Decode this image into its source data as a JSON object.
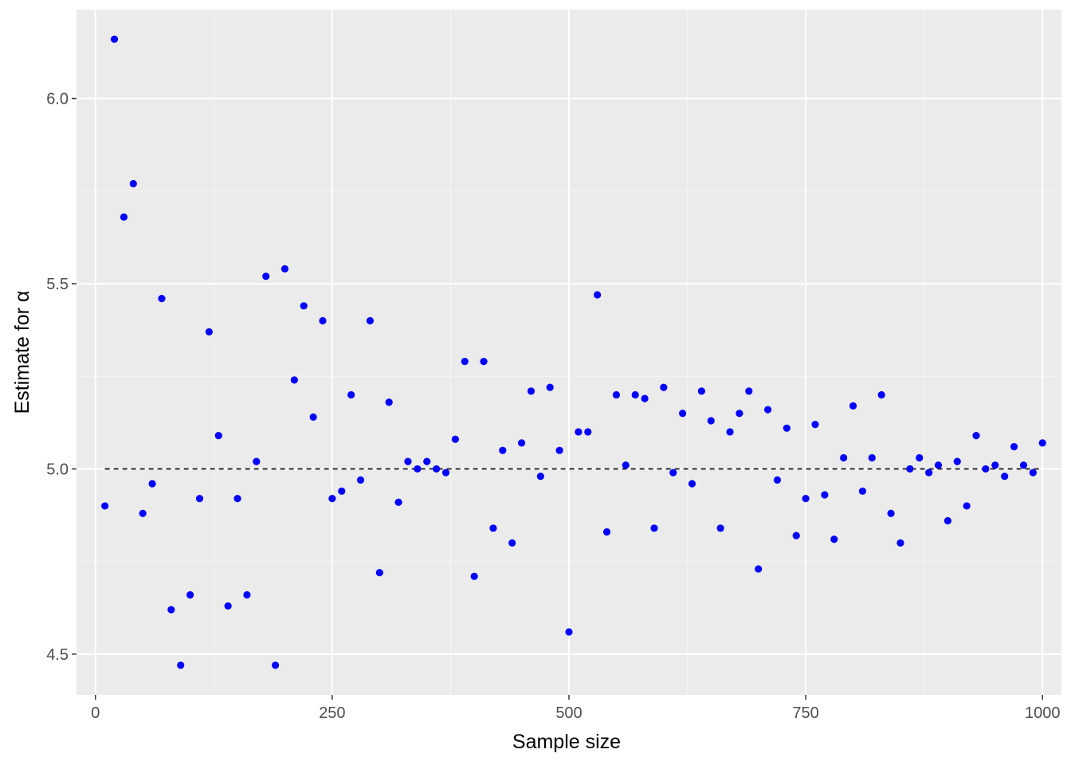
{
  "colors": {
    "panel_background": "#ebebeb",
    "grid_major": "#ffffff",
    "grid_minor": "#f5f5f5",
    "point": "#0000ff",
    "reference_line": "#000000"
  },
  "chart_data": {
    "type": "scatter",
    "xlabel": "Sample size",
    "ylabel": "Estimate for α",
    "xlim": [
      -20,
      1020
    ],
    "ylim": [
      4.39,
      6.24
    ],
    "x_ticks": [
      0,
      250,
      500,
      750,
      1000
    ],
    "x_tick_labels": [
      "0",
      "250",
      "500",
      "750",
      "1000"
    ],
    "y_ticks": [
      4.5,
      5.0,
      5.5,
      6.0
    ],
    "y_tick_labels": [
      "4.5",
      "5.0",
      "5.5",
      "6.0"
    ],
    "grid": true,
    "reference_line": {
      "y": 5.0,
      "x_from": 10,
      "x_to": 1000,
      "style": "dashed"
    },
    "x": [
      10,
      20,
      30,
      40,
      50,
      60,
      70,
      80,
      90,
      100,
      110,
      120,
      130,
      140,
      150,
      160,
      170,
      180,
      190,
      200,
      210,
      220,
      230,
      240,
      250,
      260,
      270,
      280,
      290,
      300,
      310,
      320,
      330,
      340,
      350,
      360,
      370,
      380,
      390,
      400,
      410,
      420,
      430,
      440,
      450,
      460,
      470,
      480,
      490,
      500,
      510,
      520,
      530,
      540,
      550,
      560,
      570,
      580,
      590,
      600,
      610,
      620,
      630,
      640,
      650,
      660,
      670,
      680,
      690,
      700,
      710,
      720,
      730,
      740,
      750,
      760,
      770,
      780,
      790,
      800,
      810,
      820,
      830,
      840,
      850,
      860,
      870,
      880,
      890,
      900,
      910,
      920,
      930,
      940,
      950,
      960,
      970,
      980,
      990,
      1000
    ],
    "y": [
      4.9,
      6.16,
      5.68,
      5.77,
      4.88,
      4.96,
      5.46,
      4.62,
      4.47,
      4.66,
      4.92,
      5.37,
      5.09,
      4.63,
      4.92,
      4.66,
      5.02,
      5.52,
      4.47,
      5.54,
      5.24,
      5.44,
      5.14,
      5.4,
      4.92,
      4.94,
      5.2,
      4.97,
      5.4,
      4.72,
      5.18,
      4.91,
      5.02,
      5.0,
      5.02,
      5.0,
      4.99,
      5.08,
      5.29,
      4.71,
      5.29,
      4.84,
      5.05,
      4.8,
      5.07,
      5.21,
      4.98,
      5.22,
      5.05,
      4.56,
      5.1,
      5.1,
      5.47,
      4.83,
      5.2,
      5.01,
      5.2,
      5.19,
      4.84,
      5.22,
      4.99,
      5.15,
      4.96,
      5.21,
      5.13,
      4.84,
      5.1,
      5.15,
      5.21,
      4.73,
      5.16,
      4.97,
      5.11,
      4.82,
      4.92,
      5.12,
      4.93,
      4.81,
      5.03,
      5.17,
      4.94,
      5.03,
      5.2,
      4.88,
      4.8,
      5.0,
      5.03,
      4.99,
      5.01,
      4.86,
      5.02,
      4.9,
      5.09,
      5.0,
      5.01,
      4.98,
      5.06,
      5.01,
      4.99,
      5.07
    ]
  }
}
